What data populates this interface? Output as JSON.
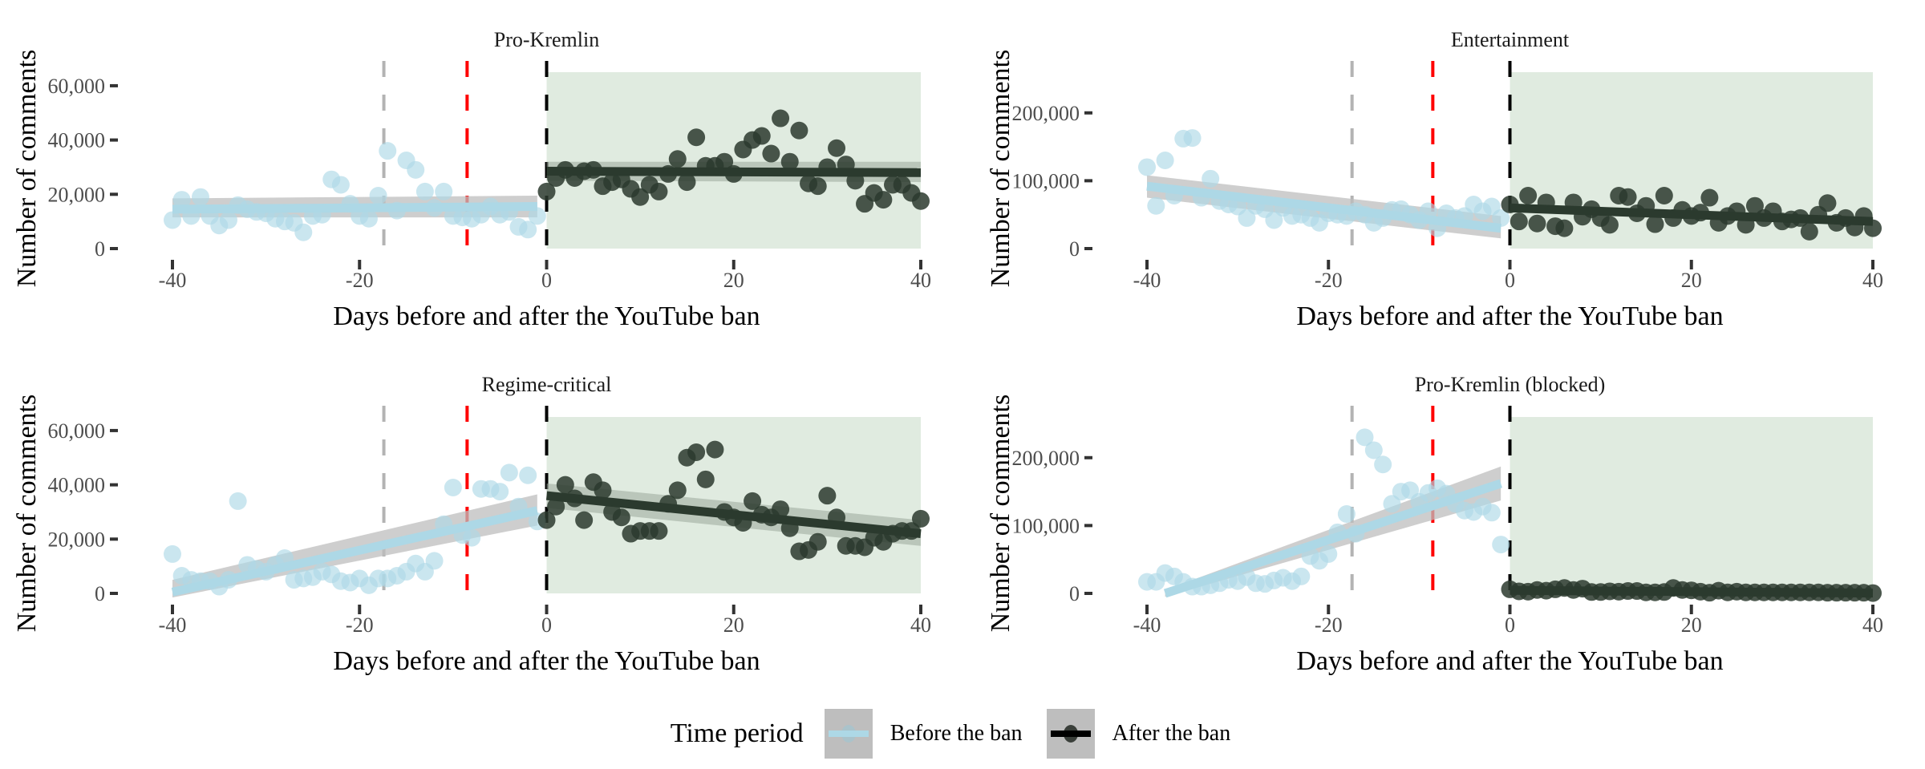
{
  "chart_data": {
    "type": "scatter",
    "layout": "2x2 facets",
    "colors": {
      "before": "#add8e6",
      "after": "#2b3a2e",
      "ci_band": "#bebebe",
      "after_shading": "#e0ebe0",
      "ban_line": "#000000",
      "red_line": "#ff0000",
      "grey_line": "#b3b3b3"
    },
    "xlabel": "Days before and after the YouTube ban",
    "ylabel": "Number of comments",
    "xlim": [
      -40,
      40
    ],
    "xticks": [
      -40,
      -20,
      0,
      20,
      40
    ],
    "xtick_labels": [
      "-40",
      "-20",
      "0",
      "20",
      "40"
    ],
    "reference_lines": [
      {
        "day": -17.4,
        "style": "dashed",
        "color": "grey"
      },
      {
        "day": -8.5,
        "style": "dashed",
        "color": "red"
      },
      {
        "day": 0,
        "style": "dashed",
        "color": "black"
      }
    ],
    "shaded_region": {
      "from_day": 0,
      "to_day": 40,
      "label": "after the ban"
    },
    "legend": {
      "title": "Time period",
      "position": "bottom",
      "entries": [
        {
          "label": "Before the ban",
          "key": "before"
        },
        {
          "label": "After the ban",
          "key": "after"
        }
      ]
    },
    "panels": [
      {
        "title": "Pro-Kremlin",
        "ylim": [
          0,
          65000
        ],
        "yticks": [
          0,
          20000,
          40000,
          60000
        ],
        "ytick_labels": [
          "0",
          "20,000",
          "40,000",
          "60,000"
        ],
        "before": {
          "x_start": -40,
          "values": [
            10500,
            18000,
            12000,
            19000,
            12000,
            8500,
            10500,
            16000,
            14500,
            13500,
            13000,
            11000,
            10000,
            9500,
            6000,
            12000,
            12500,
            25500,
            23500,
            16500,
            12000,
            11000,
            19500,
            36000,
            14000,
            32500,
            29000,
            21000,
            15000,
            21000,
            12000,
            11500,
            11000,
            12500,
            15500,
            12500,
            13500,
            8000,
            7000,
            12000
          ],
          "fit": {
            "x": [
              -40,
              -1
            ],
            "y": [
              14500,
              15500
            ],
            "ci_low": [
              11500,
              11500
            ],
            "ci_high": [
              18500,
              19500
            ]
          }
        },
        "after": {
          "x_start": 0,
          "values": [
            21000,
            26000,
            29000,
            26000,
            28500,
            29000,
            23000,
            24500,
            25500,
            22000,
            19000,
            23500,
            21000,
            27500,
            33000,
            24500,
            41000,
            30500,
            30500,
            32000,
            27500,
            36500,
            40000,
            41500,
            35000,
            48000,
            32000,
            43500,
            24000,
            23000,
            30000,
            37000,
            31000,
            25000,
            16500,
            20500,
            18000,
            23500,
            23500,
            20500,
            17500
          ],
          "fit": {
            "x": [
              0,
              40
            ],
            "y": [
              28500,
              28000
            ],
            "ci_low": [
              25000,
              24500
            ],
            "ci_high": [
              32000,
              32000
            ]
          }
        }
      },
      {
        "title": "Entertainment",
        "ylim": [
          0,
          260000
        ],
        "yticks": [
          0,
          100000,
          200000
        ],
        "ytick_labels": [
          "0",
          "100,000",
          "200,000"
        ],
        "before": {
          "x_start": -40,
          "values": [
            120000,
            63000,
            130000,
            78000,
            162000,
            163000,
            75000,
            103000,
            70000,
            65000,
            62000,
            45000,
            63000,
            58000,
            42000,
            60000,
            48000,
            50000,
            45000,
            38000,
            52000,
            50000,
            48000,
            55000,
            50000,
            38000,
            45000,
            57000,
            58000,
            50000,
            42000,
            55000,
            30000,
            52000,
            45000,
            48000,
            65000,
            55000,
            62000,
            45000
          ],
          "fit": {
            "x": [
              -40,
              -1
            ],
            "y": [
              92000,
              30000
            ],
            "ci_low": [
              75000,
              15000
            ],
            "ci_high": [
              108000,
              48000
            ]
          }
        },
        "after": {
          "x_start": 0,
          "values": [
            65000,
            40000,
            78000,
            37000,
            68000,
            33000,
            30000,
            68000,
            47000,
            58000,
            45000,
            35000,
            78000,
            76000,
            52000,
            63000,
            36000,
            78000,
            45000,
            57000,
            48000,
            53000,
            75000,
            38000,
            48000,
            55000,
            35000,
            63000,
            45000,
            55000,
            40000,
            43000,
            45000,
            25000,
            50000,
            67000,
            38000,
            45000,
            31000,
            48000,
            30000
          ],
          "fit": {
            "x": [
              0,
              40
            ],
            "y": [
              60000,
              40000
            ],
            "ci_low": [
              54000,
              35000
            ],
            "ci_high": [
              66000,
              46000
            ]
          }
        }
      },
      {
        "title": "Regime-critical",
        "ylim": [
          0,
          65000
        ],
        "yticks": [
          0,
          20000,
          40000,
          60000
        ],
        "ytick_labels": [
          "0",
          "20,000",
          "40,000",
          "60,000"
        ],
        "before": {
          "x_start": -40,
          "values": [
            14500,
            6500,
            5000,
            4500,
            4500,
            2500,
            5000,
            34000,
            10500,
            9000,
            8000,
            10500,
            13000,
            5000,
            5500,
            6000,
            8000,
            7000,
            4500,
            4000,
            5500,
            3000,
            5500,
            5500,
            6500,
            8000,
            11000,
            8000,
            12000,
            25500,
            39000,
            21500,
            20500,
            38500,
            38500,
            37500,
            44500,
            32000,
            43500,
            26500
          ],
          "fit": {
            "x": [
              -40,
              -1
            ],
            "y": [
              500,
              30500
            ],
            "ci_low": [
              -1500,
              25000
            ],
            "ci_high": [
              5000,
              36500
            ]
          }
        },
        "after": {
          "x_start": 0,
          "values": [
            27000,
            32000,
            40000,
            35000,
            27000,
            41000,
            38000,
            30000,
            28000,
            22000,
            23000,
            23000,
            23000,
            33000,
            38000,
            50000,
            52000,
            42000,
            53000,
            30000,
            28000,
            26000,
            34000,
            29000,
            28000,
            31000,
            24000,
            15500,
            16000,
            19000,
            36000,
            28000,
            17500,
            17500,
            17000,
            20500,
            19000,
            22000,
            23000,
            23000,
            27500
          ],
          "fit": {
            "x": [
              0,
              40
            ],
            "y": [
              36000,
              22000
            ],
            "ci_low": [
              31500,
              17500
            ],
            "ci_high": [
              40500,
              27000
            ]
          }
        }
      },
      {
        "title": "Pro-Kremlin (blocked)",
        "ylim": [
          0,
          260000
        ],
        "yticks": [
          0,
          100000,
          200000
        ],
        "ytick_labels": [
          "0",
          "100,000",
          "200,000"
        ],
        "before": {
          "x_start": -40,
          "values": [
            17000,
            17000,
            30000,
            25000,
            17000,
            10000,
            10000,
            12000,
            15000,
            20000,
            18000,
            24000,
            15000,
            14000,
            19000,
            23000,
            18000,
            25000,
            55000,
            48000,
            58000,
            90000,
            117000,
            88000,
            230000,
            211000,
            190000,
            132000,
            150000,
            152000,
            135000,
            148000,
            155000,
            147000,
            132000,
            122000,
            120000,
            128000,
            119000,
            72000
          ],
          "fit": {
            "x": [
              -38,
              -1
            ],
            "y": [
              0,
              162000
            ],
            "ci_low": [
              -5000,
              137000
            ],
            "ci_high": [
              5000,
              187000
            ]
          }
        },
        "after": {
          "x_start": 0,
          "values": [
            6000,
            3000,
            2500,
            5000,
            4000,
            6000,
            8000,
            5000,
            7000,
            2000,
            2000,
            3000,
            2500,
            3500,
            3500,
            1500,
            1500,
            2000,
            8000,
            5000,
            4500,
            2500,
            1000,
            4000,
            1500,
            2500,
            1500,
            1500,
            1500,
            1500,
            1500,
            1500,
            1500,
            1500,
            1500,
            1000,
            1000,
            1000,
            1000,
            1000,
            500
          ],
          "fit": {
            "x": [
              0,
              40
            ],
            "y": [
              4500,
              500
            ],
            "ci_low": [
              3000,
              -500
            ],
            "ci_high": [
              6000,
              1500
            ]
          }
        }
      }
    ]
  }
}
